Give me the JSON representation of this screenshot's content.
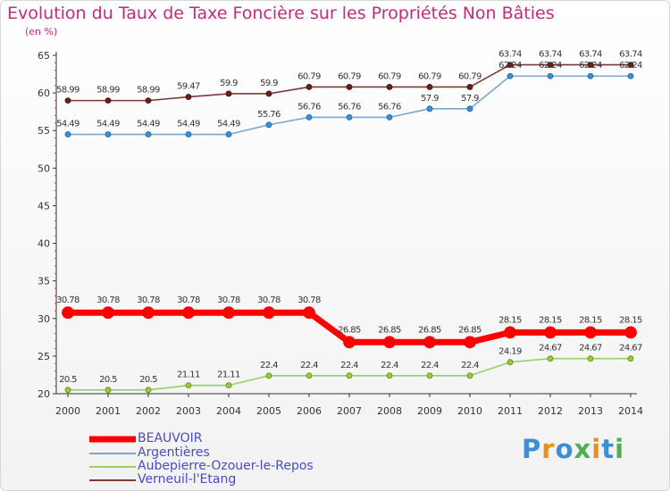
{
  "chart_data": {
    "type": "line",
    "title": "Evolution du Taux de Taxe Foncière sur les Propriétés Non Bâties",
    "ylabel": "(en %)",
    "xlabel": "",
    "ylim": [
      20,
      65
    ],
    "yticks": [
      20,
      25,
      30,
      35,
      40,
      45,
      50,
      55,
      60,
      65
    ],
    "x": [
      "2000",
      "2001",
      "2002",
      "2003",
      "2004",
      "2005",
      "2006",
      "2007",
      "2008",
      "2009",
      "2010",
      "2011",
      "2012",
      "2013",
      "2014"
    ],
    "series": [
      {
        "name": "BEAUVOIR",
        "color": "#ff0000",
        "values": [
          30.78,
          30.78,
          30.78,
          30.78,
          30.78,
          30.78,
          30.78,
          26.85,
          26.85,
          26.85,
          26.85,
          28.15,
          28.15,
          28.15,
          28.15
        ]
      },
      {
        "name": "Argentières",
        "color": "#7ba7d0",
        "values": [
          54.49,
          54.49,
          54.49,
          54.49,
          54.49,
          55.76,
          56.76,
          56.76,
          56.76,
          57.9,
          57.9,
          62.24,
          62.24,
          62.24,
          62.24
        ]
      },
      {
        "name": "Aubepierre-Ozouer-le-Repos",
        "color": "#9acd6e",
        "values": [
          20.5,
          20.5,
          20.5,
          21.11,
          21.11,
          22.4,
          22.4,
          22.4,
          22.4,
          22.4,
          22.4,
          24.19,
          24.67,
          24.67,
          24.67
        ]
      },
      {
        "name": "Verneuil-l'Etang",
        "color": "#7d3a3a",
        "values": [
          58.99,
          58.99,
          58.99,
          59.47,
          59.9,
          59.9,
          60.79,
          60.79,
          60.79,
          60.79,
          60.79,
          63.74,
          63.74,
          63.74,
          63.74
        ]
      }
    ],
    "labels": {
      "BEAUVOIR": [
        "30.78",
        "30.78",
        "30.78",
        "30.78",
        "30.78",
        "30.78",
        "30.78",
        "26.85",
        "26.85",
        "26.85",
        "26.85",
        "28.15",
        "28.15",
        "28.15",
        "28.15"
      ],
      "Argentières": [
        "54.49",
        "54.49",
        "54.49",
        "54.49",
        "54.49",
        "55.76",
        "56.76",
        "56.76",
        "56.76",
        "57.9",
        "57.9",
        "62.24",
        "62.24",
        "62.24",
        "62.24"
      ],
      "Aubepierre-Ozouer-le-Repos": [
        "20.5",
        "20.5",
        "20.5",
        "21.11",
        "21.11",
        "22.4",
        "22.4",
        "22.4",
        "22.4",
        "22.4",
        "22.4",
        "24.19",
        "24.67",
        "24.67",
        "24.67"
      ],
      "Verneuil-l'Etang": [
        "58.99",
        "58.99",
        "58.99",
        "59.47",
        "59.9",
        "59.9",
        "60.79",
        "60.79",
        "60.79",
        "60.79",
        "60.79",
        "63.74",
        "63.74",
        "63.74",
        "63.74"
      ]
    },
    "legend": [
      "BEAUVOIR",
      "Argentières",
      "Aubepierre-Ozouer-le-Repos",
      "Verneuil-l'Etang"
    ],
    "legend_position": "bottom-left",
    "grid": false
  },
  "brand": {
    "logo_letters": [
      "P",
      "r",
      "o",
      "x",
      "i",
      "t",
      "i"
    ],
    "logo_colors": [
      "#3a8fd6",
      "#e8901a",
      "#3a8fd6",
      "#4caf50",
      "#e8901a",
      "#3a8fd6",
      "#4caf50"
    ]
  }
}
